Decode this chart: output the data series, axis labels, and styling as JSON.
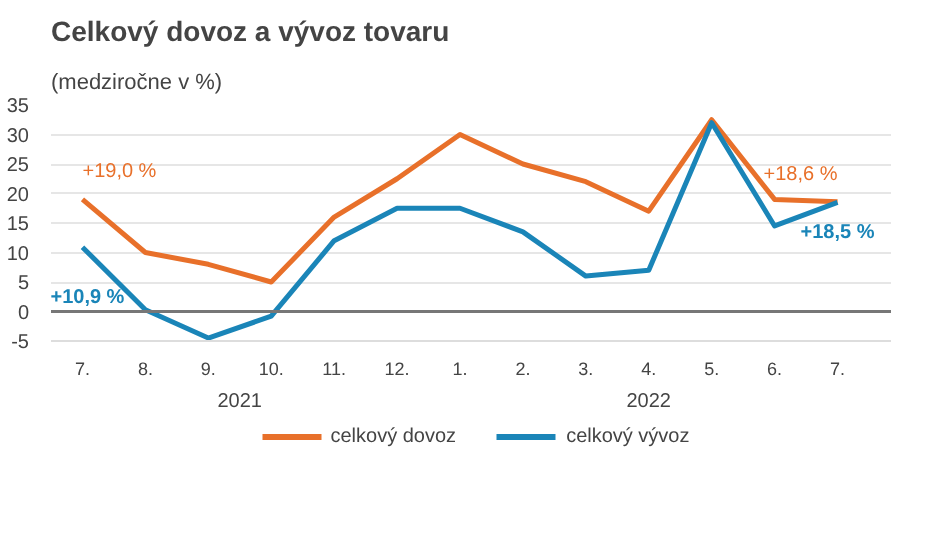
{
  "chart_data": {
    "type": "line",
    "title": "Celkový dovoz a vývoz tovaru",
    "subtitle": "(medziročne v %)",
    "categories": [
      "7.",
      "8.",
      "9.",
      "10.",
      "11.",
      "12.",
      "1.",
      "2.",
      "3.",
      "4.",
      "5.",
      "6.",
      "7."
    ],
    "annotations": [
      "2021",
      "2022"
    ],
    "series": [
      {
        "name": "celkový dovoz",
        "color": "#e8702a",
        "values": [
          19.0,
          10,
          8,
          5,
          16,
          22.5,
          30,
          25,
          22,
          17,
          32.5,
          19,
          18.6
        ],
        "value_labels": [
          "+19,0 %",
          null,
          null,
          null,
          null,
          null,
          null,
          null,
          null,
          null,
          null,
          null,
          "+18,6 %"
        ]
      },
      {
        "name": "celkový vývoz",
        "color": "#1a85b8",
        "values": [
          10.9,
          0.3,
          -4.5,
          -0.8,
          12,
          17.5,
          17.5,
          13.5,
          6,
          7,
          32,
          14.5,
          18.5
        ],
        "value_labels": [
          "+10,9 %",
          null,
          null,
          null,
          null,
          null,
          null,
          null,
          null,
          null,
          null,
          null,
          "+18,5 %"
        ]
      }
    ],
    "ylim": [
      -5,
      35
    ],
    "yticks": [
      -5,
      0,
      5,
      10,
      15,
      20,
      25,
      30,
      35
    ],
    "grid": "y",
    "legend": "bottom",
    "ref_lines": [
      {
        "axis": "y",
        "value": 0,
        "color": "#777777"
      }
    ]
  }
}
